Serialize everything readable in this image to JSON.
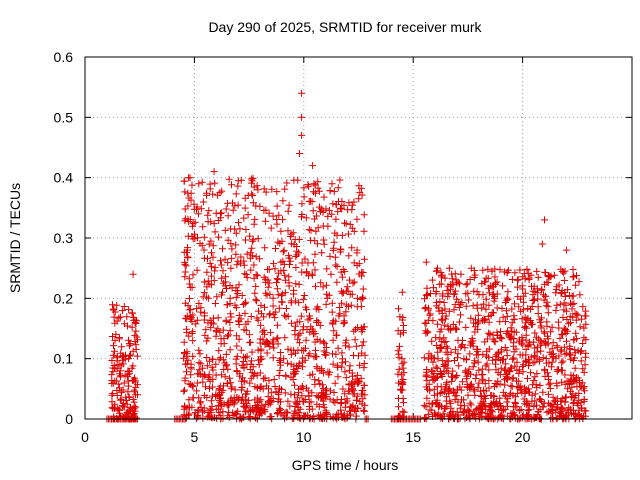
{
  "chart_data": {
    "type": "scatter",
    "title": "Day 290 of 2025, SRMTID for receiver murk",
    "xlabel": "GPS time / hours",
    "ylabel": "SRMTID / TECUs",
    "xlim": [
      0,
      25
    ],
    "ylim": [
      0,
      0.6
    ],
    "xticks": [
      0,
      5,
      10,
      15,
      20
    ],
    "xtick_labels": [
      "0",
      "5",
      "10",
      "15",
      "20"
    ],
    "yticks": [
      0,
      0.1,
      0.2,
      0.3,
      0.4,
      0.5,
      0.6
    ],
    "ytick_labels": [
      "0",
      "0.1",
      "0.2",
      "0.3",
      "0.4",
      "0.5",
      "0.6"
    ],
    "grid": true,
    "marker": "+",
    "color": "#dd0000",
    "segments": [
      {
        "start": 1.2,
        "end": 2.4,
        "max": 0.19,
        "zero_start": 1.0,
        "zero_end": 2.4
      },
      {
        "start": 4.5,
        "end": 12.8,
        "max": 0.4,
        "zero_start": 4.1,
        "zero_end": 4.6
      },
      {
        "start": 14.3,
        "end": 14.6,
        "max": 0.2,
        "zero_start": 14.0,
        "zero_end": 15.4
      },
      {
        "start": 15.5,
        "end": 22.9,
        "max": 0.25,
        "zero_start": 12.8,
        "zero_end": 13.0
      }
    ],
    "peaks": [
      {
        "x": 2.2,
        "y": 0.24
      },
      {
        "x": 4.8,
        "y": 0.4
      },
      {
        "x": 5.2,
        "y": 0.39
      },
      {
        "x": 5.9,
        "y": 0.41
      },
      {
        "x": 7.9,
        "y": 0.38
      },
      {
        "x": 9.9,
        "y": 0.54
      },
      {
        "x": 9.9,
        "y": 0.5
      },
      {
        "x": 9.9,
        "y": 0.47
      },
      {
        "x": 9.8,
        "y": 0.44
      },
      {
        "x": 10.4,
        "y": 0.42
      },
      {
        "x": 14.5,
        "y": 0.21
      },
      {
        "x": 15.6,
        "y": 0.26
      },
      {
        "x": 21.0,
        "y": 0.33
      },
      {
        "x": 20.9,
        "y": 0.29
      },
      {
        "x": 22.0,
        "y": 0.28
      }
    ]
  }
}
